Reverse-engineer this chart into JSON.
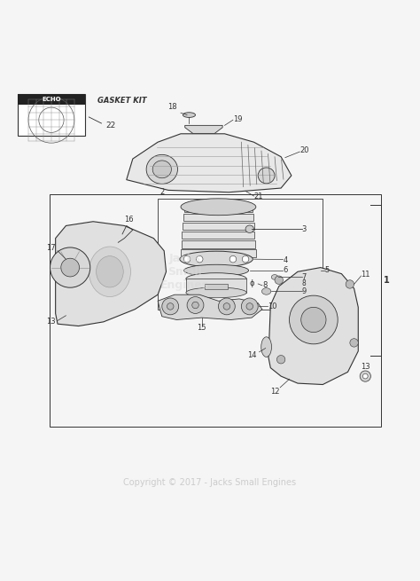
{
  "bg_color": "#f5f5f5",
  "copyright_text": "Copyright © 2017 - Jacks Small Engines",
  "copyright_color": "#cccccc",
  "gasket_kit_label": "GASKET KIT",
  "line_color": "#333333"
}
